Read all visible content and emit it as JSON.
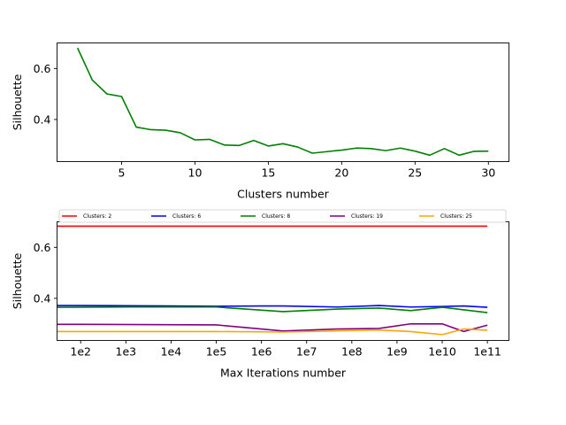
{
  "chart_data": [
    {
      "type": "line",
      "title": "",
      "xlabel": "Clusters number",
      "ylabel": "Silhouette",
      "xlim": [
        0.6,
        31.4
      ],
      "ylim": [
        0.235,
        0.7
      ],
      "xticks": [
        5,
        10,
        15,
        20,
        25,
        30
      ],
      "xtick_labels": [
        "5",
        "10",
        "15",
        "20",
        "25",
        "30"
      ],
      "yticks": [
        0.4,
        0.6
      ],
      "ytick_labels": [
        "0.4",
        "0.6"
      ],
      "grid": false,
      "series": [
        {
          "color": "#008000",
          "x": [
            2,
            3,
            4,
            5,
            6,
            7,
            8,
            9,
            10,
            11,
            12,
            13,
            14,
            15,
            16,
            17,
            18,
            19,
            20,
            21,
            22,
            23,
            24,
            25,
            26,
            27,
            28,
            29,
            30
          ],
          "y": [
            0.68,
            0.555,
            0.5,
            0.49,
            0.37,
            0.36,
            0.358,
            0.348,
            0.32,
            0.322,
            0.3,
            0.298,
            0.318,
            0.296,
            0.305,
            0.292,
            0.268,
            0.274,
            0.28,
            0.288,
            0.286,
            0.278,
            0.288,
            0.276,
            0.26,
            0.286,
            0.26,
            0.275,
            0.276
          ]
        }
      ]
    },
    {
      "type": "line",
      "title": "",
      "xlabel": "Max Iterations number",
      "ylabel": "Silhouette",
      "xscale": "log",
      "xlim": [
        30,
        300000000000
      ],
      "ylim": [
        0.235,
        0.7
      ],
      "xticks": [
        100,
        1000,
        10000,
        100000,
        1000000,
        10000000,
        100000000,
        1000000000,
        10000000000,
        100000000000
      ],
      "xtick_labels": [
        "1e2",
        "1e3",
        "1e4",
        "1e5",
        "1e6",
        "1e7",
        "1e8",
        "1e9",
        "1e10",
        "1e11"
      ],
      "yticks": [
        0.4,
        0.6
      ],
      "ytick_labels": [
        "0.4",
        "0.6"
      ],
      "grid": false,
      "legend_position": "top",
      "series": [
        {
          "name": "Clusters: 2",
          "color": "#ff0000",
          "x": [
            30,
            100000000000
          ],
          "y": [
            0.683,
            0.683
          ]
        },
        {
          "name": "Clusters: 6",
          "color": "#0000ff",
          "x": [
            30,
            100,
            1000,
            10000,
            100000,
            1000000,
            3000000,
            50000000,
            400000000,
            2000000000,
            10000000000,
            30000000000,
            100000000000
          ],
          "y": [
            0.372,
            0.372,
            0.371,
            0.37,
            0.369,
            0.37,
            0.37,
            0.366,
            0.372,
            0.366,
            0.368,
            0.37,
            0.365
          ]
        },
        {
          "name": "Clusters: 8",
          "color": "#008000",
          "x": [
            30,
            1000,
            100000,
            3000000,
            50000000,
            400000000,
            2000000000,
            10000000000,
            30000000000,
            100000000000
          ],
          "y": [
            0.365,
            0.366,
            0.366,
            0.348,
            0.358,
            0.362,
            0.352,
            0.365,
            0.355,
            0.344
          ]
        },
        {
          "name": "Clusters: 19",
          "color": "#800080",
          "x": [
            30,
            100,
            100000,
            3000000,
            50000000,
            400000000,
            2000000000,
            10000000000,
            30000000000,
            100000000000
          ],
          "y": [
            0.298,
            0.298,
            0.296,
            0.272,
            0.28,
            0.282,
            0.3,
            0.3,
            0.27,
            0.295
          ]
        },
        {
          "name": "Clusters: 25",
          "color": "#ffa500",
          "x": [
            30,
            100000,
            3000000,
            400000000,
            2000000000,
            10000000000,
            30000000000,
            100000000000
          ],
          "y": [
            0.27,
            0.27,
            0.268,
            0.276,
            0.27,
            0.258,
            0.28,
            0.275
          ]
        }
      ]
    }
  ]
}
